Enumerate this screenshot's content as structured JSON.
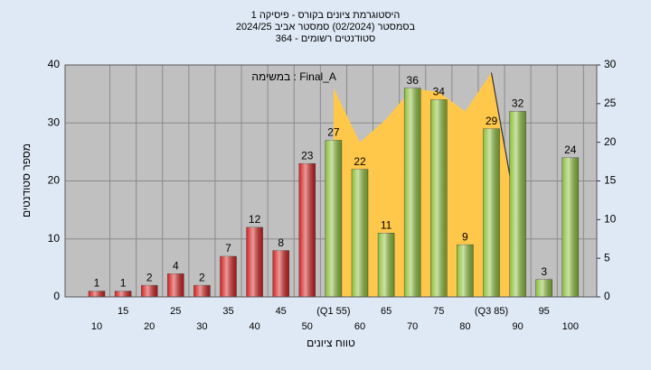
{
  "chart_data": {
    "type": "bar",
    "title": "היסטוגרמת ציונים בקורס - פיסיקה 1",
    "subtitle": [
      "בסמסטר (02/2024) סמסטר אביב 2024/25",
      "סטודנטים רשומים - 364"
    ],
    "x_label": "טווח ציונים",
    "y_label": "מספר סטודנטים",
    "categories": [
      "10",
      "15",
      "20",
      "25",
      "30",
      "35",
      "40",
      "45",
      "50",
      "(Q1 55)",
      "60",
      "65",
      "70",
      "75",
      "80",
      "(Q3 85)",
      "90",
      "95",
      "100"
    ],
    "values": [
      1,
      1,
      2,
      4,
      2,
      7,
      12,
      8,
      23,
      27,
      22,
      11,
      36,
      34,
      9,
      29,
      32,
      3,
      24
    ],
    "colors": [
      "#d42020",
      "#d42020",
      "#d42020",
      "#d42020",
      "#d42020",
      "#d42020",
      "#d42020",
      "#d42020",
      "#d42020",
      "#8cbf3a",
      "#8cbf3a",
      "#8cbf3a",
      "#8cbf3a",
      "#8cbf3a",
      "#8cbf3a",
      "#8cbf3a",
      "#8cbf3a",
      "#8cbf3a",
      "#8cbf3a"
    ],
    "series": [
      {
        "name": "במשימה : Final_A",
        "type": "area",
        "axis": "y2",
        "color": "#ffc84a",
        "values": [
          null,
          null,
          null,
          null,
          null,
          null,
          null,
          null,
          null,
          27,
          20,
          23,
          27,
          26.5,
          24,
          29,
          10,
          null,
          null
        ]
      }
    ],
    "ylim": [
      0,
      40
    ],
    "yticks": [
      0,
      10,
      20,
      30,
      40
    ],
    "y2lim": [
      0,
      30
    ],
    "y2ticks": [
      0,
      5,
      10,
      15,
      20,
      25,
      30
    ],
    "grid": true
  }
}
